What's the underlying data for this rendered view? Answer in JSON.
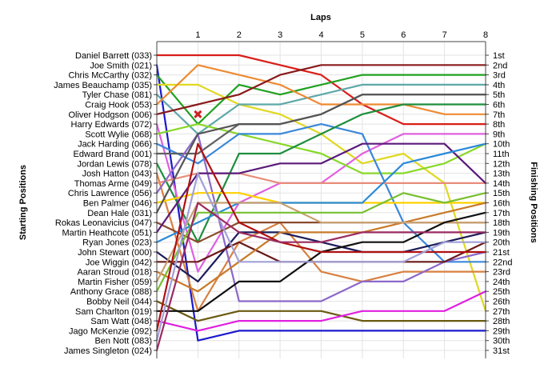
{
  "chart_data": {
    "type": "line",
    "title": "",
    "top_axis_label": "Laps",
    "left_axis_label": "Starting Positions",
    "right_axis_label": "Finishing Positions",
    "x": [
      0,
      1,
      2,
      3,
      4,
      5,
      6,
      7,
      8
    ],
    "x_tick_labels": [
      "1",
      "2",
      "3",
      "4",
      "5",
      "6",
      "7",
      "8"
    ],
    "y_inverted": true,
    "ylim": [
      1,
      31
    ],
    "starting_labels": [
      "Daniel Barrett (033)",
      "Joe Smith (021)",
      "Chris McCarthy (032)",
      "James Beauchamp (035)",
      "Tyler Chase (081)",
      "Craig Hook (053)",
      "Oliver Hodgson (006)",
      "Harry Edwards (072)",
      "Scott Wylie (068)",
      "Jack Harding (066)",
      "Edward Brand (001)",
      "Jordan Lewis (078)",
      "Josh Hatton (043)",
      "Thomas Arme (049)",
      "Chris Lawrence (056)",
      "Ben Palmer (046)",
      "Dean Hale (031)",
      "Rokas Leonavicius (047)",
      "Martin Heathcote (051)",
      "Ryan Jones (023)",
      "John Stewart (000)",
      "Joe Wiggin (042)",
      "Aaran Stroud (018)",
      "Martin Fisher (059)",
      "Anthony Grace (088)",
      "Bobby Neil (044)",
      "Sam Charlton (019)",
      "Sam Watt (048)",
      "Jago McKenzie (092)",
      "Ben Nott (083)",
      "James Singleton (024)"
    ],
    "finishing_labels": [
      "1st",
      "2nd",
      "3rd",
      "4th",
      "5th",
      "6th",
      "7th",
      "8th",
      "9th",
      "10th",
      "11th",
      "12th",
      "13th",
      "14th",
      "15th",
      "16th",
      "17th",
      "18th",
      "19th",
      "20th",
      "21st",
      "22nd",
      "23rd",
      "24th",
      "25th",
      "26th",
      "27th",
      "28th",
      "29th",
      "30th",
      "31st"
    ],
    "retired_marker": {
      "series_start": 7,
      "lap": 1,
      "position": 7,
      "color": "#cc2222"
    },
    "series": [
      {
        "color": "#d91e18",
        "values": [
          1,
          1,
          1,
          2,
          3,
          6,
          8,
          8,
          8
        ]
      },
      {
        "color": "#1a1acd",
        "values": [
          2,
          30,
          29,
          29,
          29,
          29,
          29,
          29,
          29
        ]
      },
      {
        "color": "#21a121",
        "values": [
          3,
          8,
          4,
          5,
          4,
          3,
          3,
          3,
          3
        ]
      },
      {
        "color": "#e0d820",
        "values": [
          4,
          4,
          6,
          7,
          9,
          12,
          11,
          14,
          27
        ]
      },
      {
        "color": "#5fa8a8",
        "values": [
          5,
          9,
          6,
          6,
          5,
          4,
          4,
          4,
          4
        ]
      },
      {
        "color": "#ee8a33",
        "values": [
          6,
          2,
          3,
          4,
          6,
          6,
          6,
          7,
          7
        ]
      },
      {
        "color": "#8a1a1a",
        "values": [
          7,
          6,
          5,
          3,
          2,
          2,
          2,
          2,
          2
        ]
      },
      {
        "color": "#e060e0",
        "values": [
          8,
          23,
          16,
          14,
          14,
          11,
          9,
          9,
          9
        ]
      },
      {
        "color": "#88d828",
        "values": [
          9,
          8,
          9,
          10,
          11,
          13,
          13,
          12,
          10
        ]
      },
      {
        "color": "#3a88d8",
        "values": [
          10,
          12,
          9,
          9,
          8,
          9,
          18,
          22,
          22
        ]
      },
      {
        "color": "#606060",
        "values": [
          11,
          11,
          8,
          8,
          7,
          5,
          5,
          5,
          5
        ]
      },
      {
        "color": "#1e8e3e",
        "values": [
          12,
          20,
          11,
          11,
          9,
          7,
          6,
          6,
          6
        ]
      },
      {
        "color": "#d88040",
        "values": [
          13,
          27,
          20,
          18,
          23,
          24,
          23,
          23,
          23
        ]
      },
      {
        "color": "#e88c7a",
        "values": [
          14,
          13,
          13,
          14,
          14,
          14,
          14,
          14,
          14
        ]
      },
      {
        "color": "#8c68c8",
        "values": [
          15,
          9,
          26,
          26,
          26,
          24,
          24,
          22,
          21
        ]
      },
      {
        "color": "#ffd000",
        "values": [
          16,
          15,
          15,
          16,
          16,
          16,
          16,
          16,
          16
        ]
      },
      {
        "color": "#555555",
        "values": [
          17,
          9,
          8,
          8,
          7,
          5,
          5,
          5,
          5
        ]
      },
      {
        "color": "#8a4a2a",
        "values": [
          18,
          20,
          18,
          18,
          18,
          18,
          18,
          18,
          18
        ]
      },
      {
        "color": "#5a1a7a",
        "values": [
          19,
          13,
          13,
          12,
          12,
          10,
          10,
          10,
          14
        ]
      },
      {
        "color": "#2a8ad8",
        "values": [
          20,
          18,
          16,
          16,
          16,
          16,
          12,
          11,
          10
        ]
      },
      {
        "color": "#1c1c5a",
        "values": [
          21,
          24,
          19,
          19,
          20,
          21,
          21,
          20,
          19
        ]
      },
      {
        "color": "#6a1a1a",
        "values": [
          22,
          22,
          20,
          22,
          22,
          22,
          22,
          22,
          20
        ]
      },
      {
        "color": "#c87a2a",
        "values": [
          23,
          25,
          22,
          19,
          19,
          19,
          18,
          17,
          16
        ]
      },
      {
        "color": "#c8a070",
        "values": [
          24,
          16,
          16,
          16,
          18,
          18,
          18,
          18,
          18
        ]
      },
      {
        "color": "#78c030",
        "values": [
          25,
          17,
          17,
          17,
          17,
          17,
          15,
          16,
          15
        ]
      },
      {
        "color": "#6a5a10",
        "values": [
          26,
          28,
          27,
          27,
          27,
          28,
          28,
          28,
          28
        ]
      },
      {
        "color": "#101010",
        "values": [
          27,
          27,
          24,
          24,
          21,
          20,
          20,
          18,
          17
        ]
      },
      {
        "color": "#e020e0",
        "values": [
          28,
          29,
          28,
          28,
          28,
          27,
          27,
          27,
          25
        ]
      },
      {
        "color": "#b01010",
        "values": [
          29,
          10,
          18,
          20,
          21,
          21,
          21,
          21,
          21
        ]
      },
      {
        "color": "#a0a0d8",
        "values": [
          30,
          13,
          22,
          22,
          22,
          22,
          22,
          20,
          20
        ]
      },
      {
        "color": "#9a2a60",
        "values": [
          31,
          16,
          19,
          20,
          20,
          19,
          19,
          19,
          19
        ]
      }
    ]
  }
}
